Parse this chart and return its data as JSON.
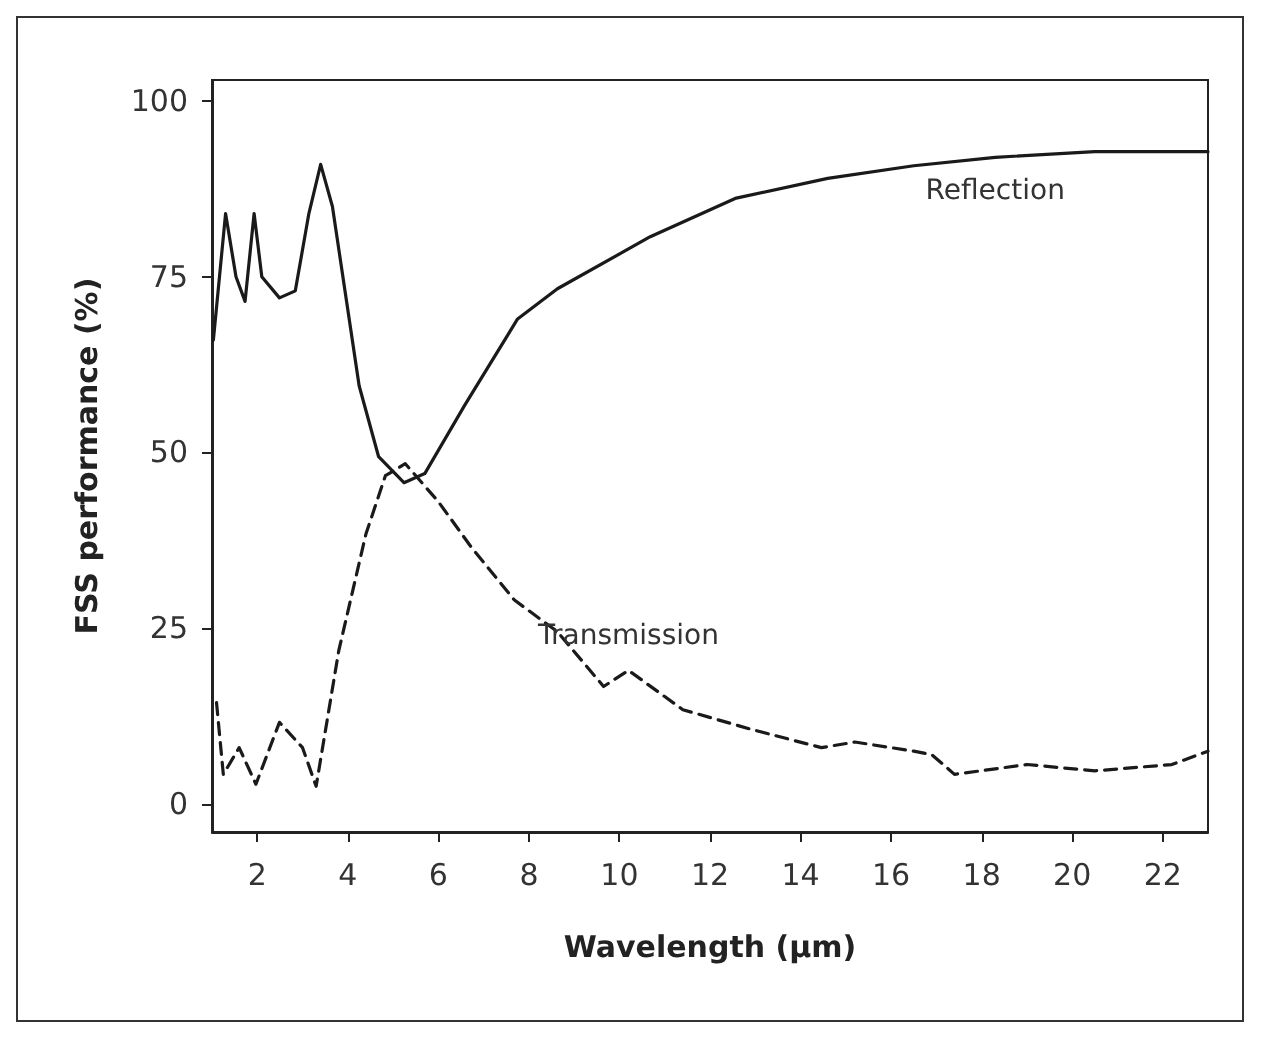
{
  "chart_data": {
    "type": "line",
    "xlabel": "Wavelength (µm)",
    "ylabel": "FSS performance (%)",
    "xlim": [
      1,
      23
    ],
    "xticks": [
      2,
      4,
      6,
      8,
      10,
      12,
      14,
      16,
      18,
      20,
      22
    ],
    "ylim": [
      -4,
      103
    ],
    "yticks": [
      0,
      25,
      50,
      75,
      100
    ],
    "grid": false,
    "legend": false,
    "marker": "none",
    "series": [
      {
        "name": "Reflection",
        "color": "#1a1a1a",
        "line_style": "solid",
        "x": [
          1.03,
          1.3,
          1.53,
          1.73,
          1.93,
          2.1,
          2.49,
          2.84,
          3.14,
          3.4,
          3.66,
          4.25,
          4.68,
          5.24,
          5.7,
          6.58,
          7.75,
          8.63,
          10.68,
          12.58,
          14.6,
          16.5,
          18.3,
          20.5,
          23
        ],
        "values": [
          66,
          84,
          75,
          71.5,
          84,
          75,
          72,
          73,
          84,
          91,
          85,
          59.5,
          49.4,
          45.7,
          47,
          56.7,
          69,
          73.3,
          80.7,
          86.2,
          89,
          90.8,
          92,
          92.8,
          92.8
        ]
      },
      {
        "name": "Transmission",
        "color": "#1a1a1a",
        "line_style": "dashed",
        "x": [
          1.1,
          1.25,
          1.6,
          1.97,
          2.49,
          3,
          3.3,
          3.8,
          4.4,
          4.83,
          5.27,
          6,
          6.73,
          7.68,
          8.63,
          9.65,
          10.2,
          11.4,
          12.86,
          14.46,
          15.2,
          16.5,
          16.9,
          17.4,
          19,
          20.5,
          22.2,
          23
        ],
        "values": [
          14.4,
          4.2,
          8,
          2.8,
          11.6,
          8,
          2.5,
          21.8,
          38.4,
          46.7,
          48.4,
          43,
          36.5,
          29,
          24.5,
          16.7,
          19,
          13.4,
          10.7,
          8,
          8.8,
          7.5,
          7,
          4.2,
          5.6,
          4.7,
          5.6,
          7.5
        ]
      }
    ]
  }
}
